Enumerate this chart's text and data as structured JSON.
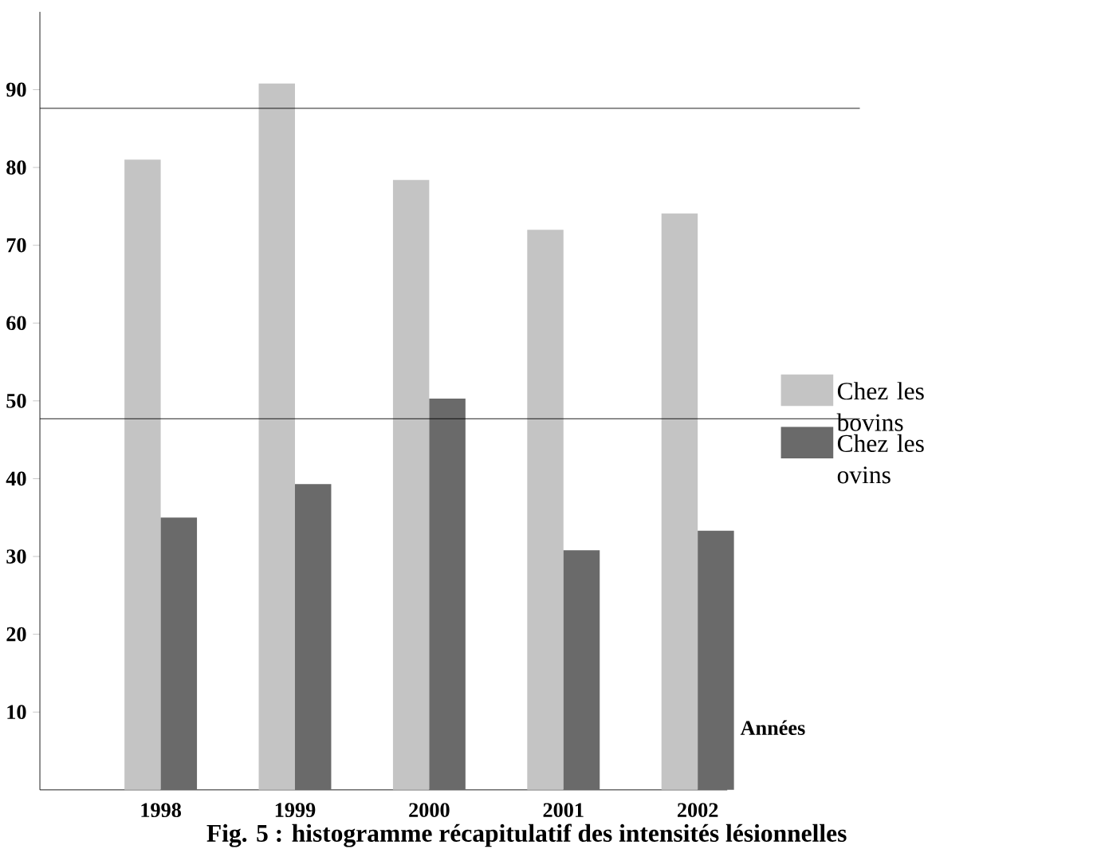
{
  "chart_data": {
    "type": "bar",
    "xlabel": "Années",
    "categories": [
      "1998",
      "1999",
      "2000",
      "2001",
      "2002"
    ],
    "series": [
      {
        "name": "Chez les bovins",
        "color": "#c4c4c4",
        "values": [
          81,
          90.8,
          78.4,
          72,
          74.1
        ]
      },
      {
        "name": "Chez les ovins",
        "color": "#6a6a6a",
        "values": [
          35,
          39.3,
          50.3,
          30.8,
          33.3
        ]
      }
    ],
    "ylim": [
      0,
      100
    ],
    "yticks": [
      10,
      20,
      30,
      40,
      50,
      60,
      70,
      80,
      90
    ],
    "ref_lines": [
      {
        "axis": "y",
        "value": 87.6,
        "color": "#000000"
      },
      {
        "axis": "y",
        "value": 47.7,
        "color": "#000000"
      }
    ],
    "legend": "right",
    "grid": false,
    "annotations": [
      "Fig. 5 : histogramme récapitulatif des intensités lésionnelles"
    ]
  }
}
